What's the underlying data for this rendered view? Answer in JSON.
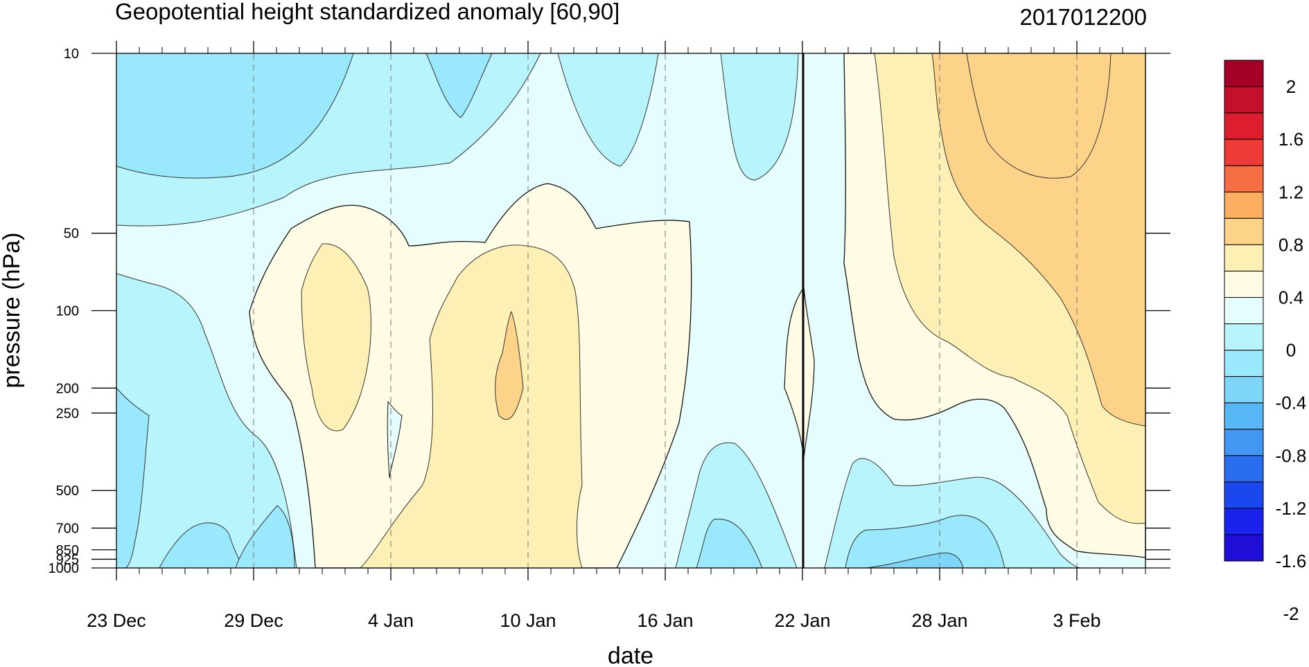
{
  "chart_data": {
    "type": "heatmap",
    "title": "Geopotential height standardized anomaly [60,90]",
    "timestamp": "2017012200",
    "xlabel": "date",
    "ylabel": "pressure (hPa)",
    "x_ticks": [
      "23 Dec",
      "29 Dec",
      "4 Jan",
      "10 Jan",
      "16 Jan",
      "22 Jan",
      "28 Jan",
      "3 Feb"
    ],
    "x_tick_days": [
      0,
      6,
      12,
      18,
      24,
      30,
      36,
      42
    ],
    "x_range_days": [
      0,
      45
    ],
    "y_ticks": [
      "10",
      "50",
      "100",
      "200",
      "250",
      "500",
      "700",
      "850",
      "925",
      "1000"
    ],
    "y_tick_values": [
      10,
      50,
      100,
      200,
      250,
      500,
      700,
      850,
      925,
      1000
    ],
    "y_scale": "log",
    "y_range": [
      1000,
      10
    ],
    "vertical_marker_day": 30,
    "grid": "dashed vertical lines at date ticks",
    "colorbar": {
      "levels": [
        "2",
        "1.6",
        "1.2",
        "0.8",
        "0.4",
        "0",
        "-0.4",
        "-0.8",
        "-1.2",
        "-1.6",
        "-2"
      ],
      "colors": [
        "#a50026",
        "#c4102a",
        "#dc1e2e",
        "#ef3b37",
        "#f46d43",
        "#fdae61",
        "#fdd38a",
        "#fdf0b4",
        "#fffbe4",
        "#e6fdfd",
        "#b8f4fb",
        "#9ae8fb",
        "#7dd6f8",
        "#58b8f5",
        "#4197f2",
        "#2a6ef0",
        "#1a48ee",
        "#1a22ee",
        "#1e0ed8"
      ]
    },
    "regions": [
      {
        "name": "upper-left-negative",
        "value": "-0.4 to -0.8"
      },
      {
        "name": "midlevel-positive-core",
        "value": "0.4"
      },
      {
        "name": "lower-left-negative",
        "value": "-0.4 to -0.8"
      },
      {
        "name": "late-period-positive",
        "value": "0.4 to 0.8"
      },
      {
        "name": "lower-right-negative",
        "value": "-0.4 to -0.8"
      }
    ]
  }
}
